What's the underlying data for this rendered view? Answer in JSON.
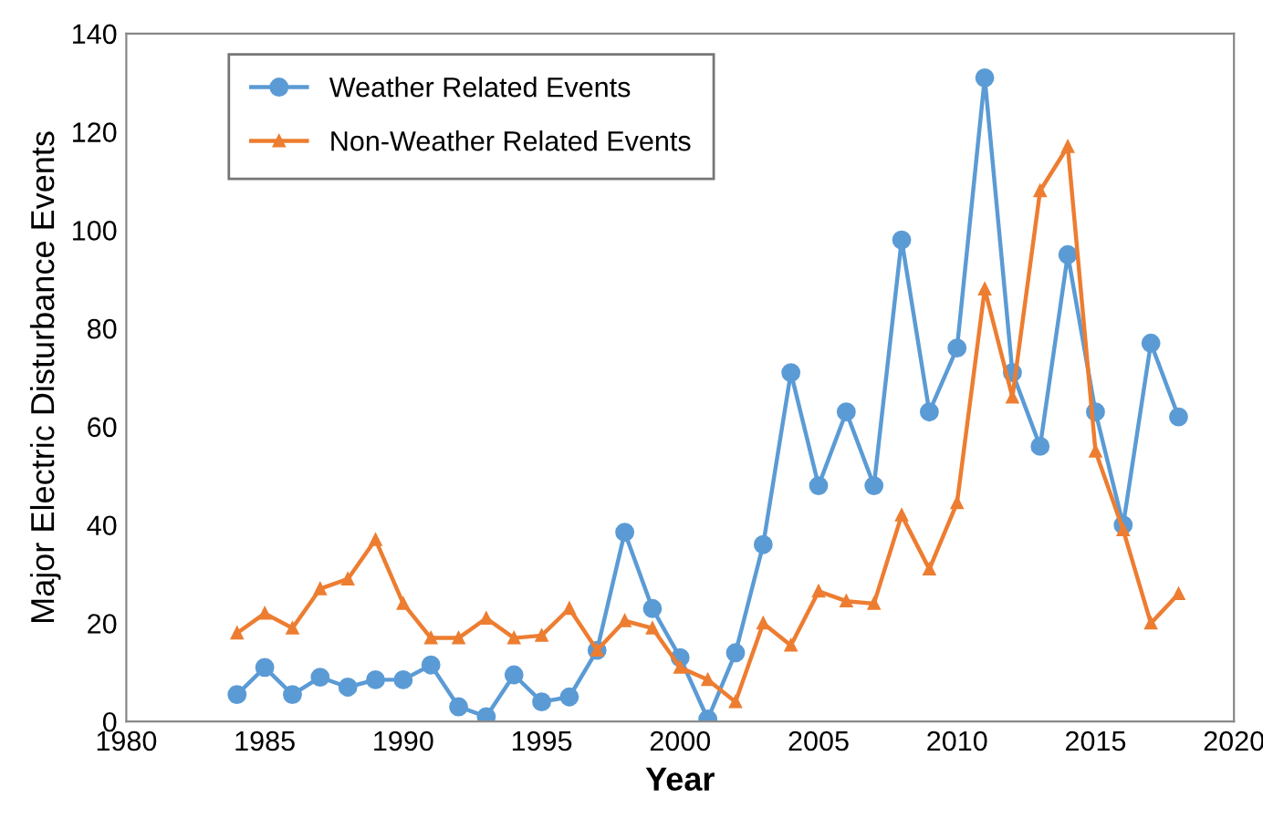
{
  "chart_data": {
    "type": "line",
    "xlabel": "Year",
    "ylabel": "Major Electric Disturbance Events",
    "x": [
      1984,
      1985,
      1986,
      1987,
      1988,
      1989,
      1990,
      1991,
      1992,
      1993,
      1994,
      1995,
      1996,
      1997,
      1998,
      1999,
      2000,
      2001,
      2002,
      2003,
      2004,
      2005,
      2006,
      2007,
      2008,
      2009,
      2010,
      2011,
      2012,
      2013,
      2014,
      2015,
      2016,
      2017,
      2018
    ],
    "series": [
      {
        "name": "Weather Related Events",
        "color": "#5b9bd5",
        "marker": "circle",
        "values": [
          5.5,
          11,
          5.5,
          9,
          7,
          8.5,
          8.5,
          11.5,
          3,
          1,
          9.5,
          4,
          5,
          14.5,
          38.5,
          23,
          13,
          0.5,
          14,
          36,
          71,
          48,
          63,
          48,
          98,
          63,
          76,
          131,
          71,
          56,
          95,
          63,
          40,
          77,
          62
        ]
      },
      {
        "name": "Non-Weather Related Events",
        "color": "#ed7d31",
        "marker": "triangle",
        "values": [
          18,
          22,
          19,
          27,
          29,
          37,
          24,
          17,
          17,
          21,
          17,
          17.5,
          23,
          14.5,
          20.5,
          19,
          11,
          8.5,
          4,
          20,
          15.5,
          26.5,
          24.5,
          24,
          42,
          31,
          44.5,
          88,
          66,
          108,
          117,
          55,
          39,
          20,
          26
        ]
      }
    ],
    "xlim": [
      1980,
      2020
    ],
    "xticks": [
      1980,
      1985,
      1990,
      1995,
      2000,
      2005,
      2010,
      2015,
      2020
    ],
    "ylim": [
      0,
      140
    ],
    "yticks": [
      0,
      20,
      40,
      60,
      80,
      100,
      120,
      140
    ],
    "grid": false,
    "legend": "top left",
    "line_style": "solid"
  }
}
